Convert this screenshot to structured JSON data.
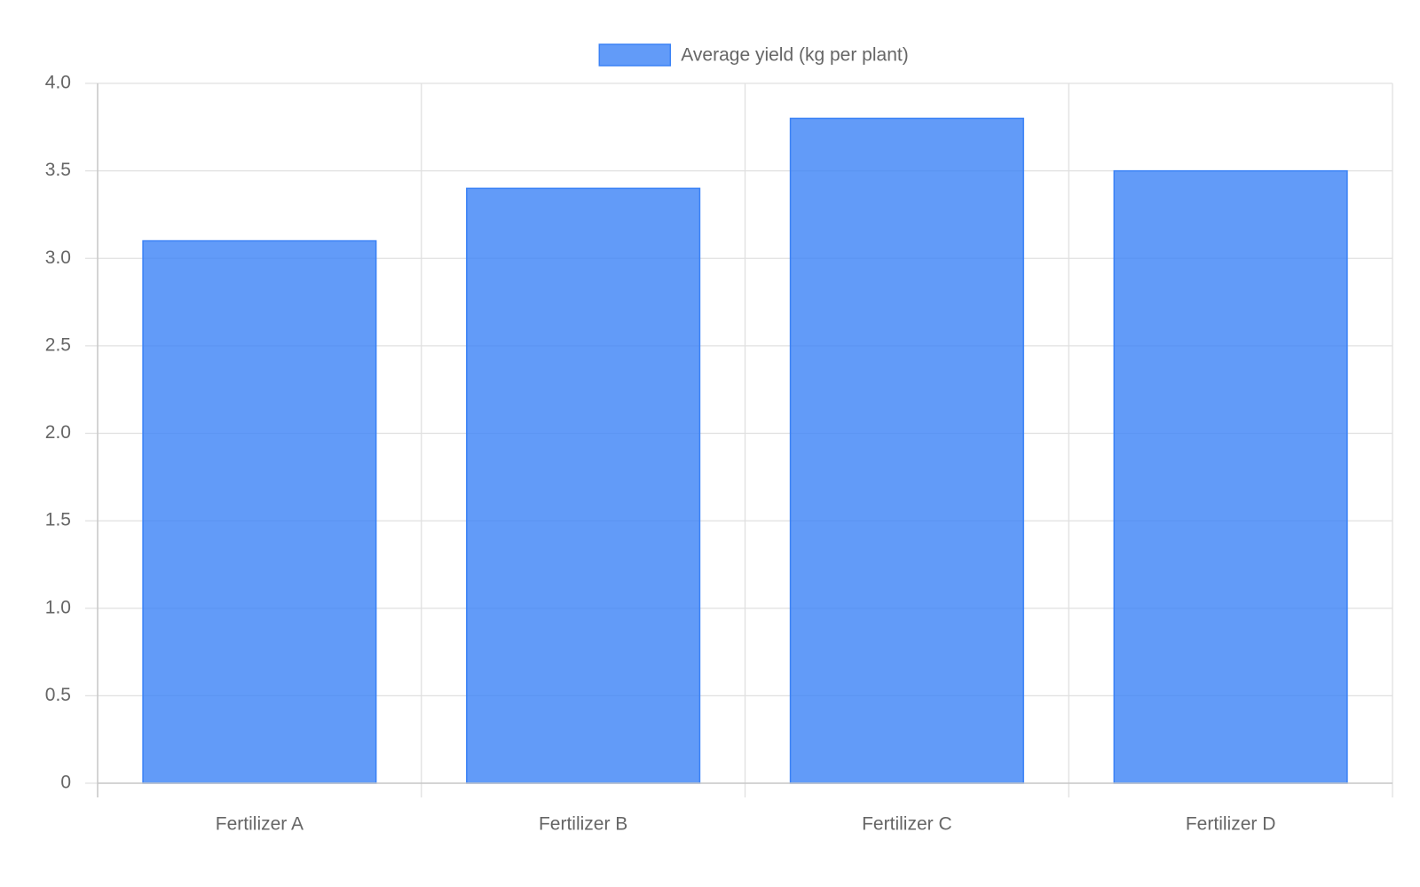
{
  "chart_data": {
    "type": "bar",
    "categories": [
      "Fertilizer A",
      "Fertilizer B",
      "Fertilizer C",
      "Fertilizer D"
    ],
    "series": [
      {
        "name": "Average yield (kg per plant)",
        "color": "#3b82f6",
        "values": [
          3.1,
          3.4,
          3.8,
          3.5
        ]
      }
    ],
    "ylim": [
      0,
      4
    ],
    "yticks": [
      0,
      0.5,
      {
        "value": 1,
        "label": "1.0"
      },
      1.5,
      {
        "value": 2,
        "label": "2.0"
      },
      2.5,
      {
        "value": 3,
        "label": "3.0"
      },
      3.5,
      {
        "value": 4,
        "label": "4.0"
      }
    ],
    "grid": true,
    "legend": "top"
  }
}
